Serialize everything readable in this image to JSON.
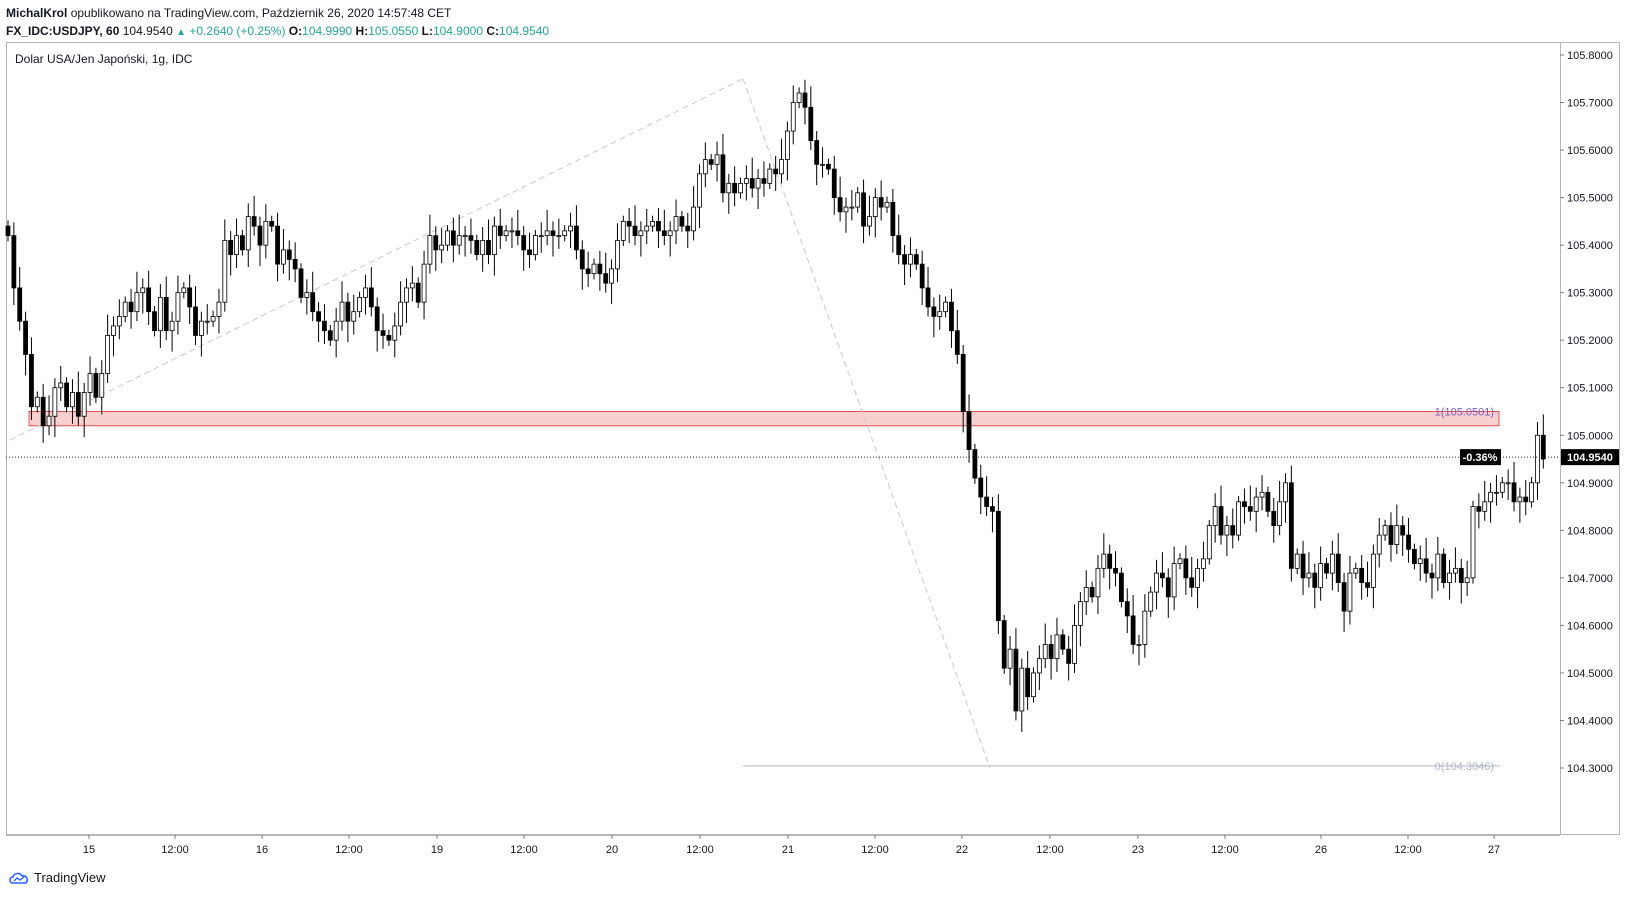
{
  "header": {
    "author": "MichalKrol",
    "published": "opublikowano na TradingView.com, Październik 26, 2020 14:57:48 CET",
    "symbol": "FX_IDC:USDJPY, 60",
    "last": "104.9540",
    "change": "+0.2640 (+0.25%)",
    "o_label": "O:",
    "o_value": "104.9990",
    "h_label": "H:",
    "h_value": "105.0550",
    "l_label": "L:",
    "l_value": "104.9000",
    "c_label": "C:",
    "c_value": "104.9540"
  },
  "chart_title": "Dolar USA/Jen Japoński, 1g, IDC",
  "footer": {
    "brand": "TradingView",
    "logo_icon": "tradingview-cloud-icon"
  },
  "colors": {
    "up_fill": "#ffffff",
    "down_fill": "#000000",
    "zone_fill": "#f8d0d0",
    "zone_stroke": "#e05050",
    "fib_text": "#7b5cc4"
  },
  "chart_data": {
    "type": "candlestick",
    "title": "Dolar USA/Jen Japoński, 1g, IDC",
    "ylim": [
      104.25,
      105.85
    ],
    "y_ticks": [
      "105.8000",
      "105.7000",
      "105.6000",
      "105.5000",
      "105.4000",
      "105.3000",
      "105.2000",
      "105.1000",
      "105.0000",
      "104.9000",
      "104.8000",
      "104.7000",
      "104.6000",
      "104.5000",
      "104.4000",
      "104.3000"
    ],
    "x_ticks": [
      "15",
      "12:00",
      "16",
      "12:00",
      "19",
      "12:00",
      "20",
      "12:00",
      "21",
      "12:00",
      "22",
      "12:00",
      "23",
      "12:00",
      "26",
      "12:00",
      "27"
    ],
    "last_price_label": "104.9540",
    "pct_change_label": "-0.36%",
    "last_price": 104.954,
    "resistance_zone": {
      "low": 105.02,
      "high": 105.05
    },
    "fib_levels": [
      {
        "label": "1(105.0501)",
        "value": 105.0501
      },
      {
        "label": "0(104.3046)",
        "value": 104.3046
      }
    ],
    "trend_lines": [
      {
        "from": [
          104.99,
          "15 start"
        ],
        "to": [
          105.75,
          "20 14:00"
        ]
      },
      {
        "from": [
          105.75,
          "20 14:00"
        ],
        "to": [
          104.3,
          "22 06:00"
        ]
      }
    ],
    "grid": false,
    "series": [
      {
        "close": [
          105.42,
          105.31,
          105.24,
          105.17,
          105.06,
          105.08,
          105.02,
          105.04,
          105.1,
          105.11,
          105.06,
          105.09,
          105.04,
          105.09,
          105.13,
          105.08,
          105.13,
          105.21,
          105.23,
          105.25,
          105.28,
          105.26,
          105.3,
          105.31,
          105.26,
          105.22,
          105.29,
          105.22,
          105.24,
          105.3,
          105.31,
          105.27,
          105.21,
          105.24,
          105.24,
          105.25,
          105.28,
          105.41,
          105.38,
          105.42,
          105.39,
          105.46,
          105.44,
          105.4,
          105.45,
          105.44,
          105.36,
          105.39,
          105.37,
          105.35,
          105.29,
          105.3,
          105.26,
          105.24,
          105.22,
          105.2,
          105.24,
          105.28,
          105.24,
          105.26,
          105.29,
          105.31,
          105.27,
          105.22,
          105.21,
          105.2,
          105.23,
          105.28,
          105.31,
          105.32,
          105.28,
          105.36,
          105.42,
          105.39,
          105.4,
          105.43,
          105.4,
          105.42,
          105.42,
          105.41,
          105.38,
          105.41,
          105.38,
          105.44,
          105.42,
          105.43,
          105.43,
          105.42,
          105.39,
          105.38,
          105.42,
          105.42,
          105.43,
          105.42,
          105.42,
          105.43,
          105.44,
          105.39,
          105.35,
          105.34,
          105.36,
          105.34,
          105.32,
          105.35,
          105.41,
          105.45,
          105.44,
          105.42,
          105.43,
          105.44,
          105.45,
          105.43,
          105.42,
          105.43,
          105.46,
          105.44,
          105.43,
          105.48,
          105.55,
          105.58,
          105.57,
          105.59,
          105.51,
          105.53,
          105.51,
          105.53,
          105.54,
          105.52,
          105.54,
          105.53,
          105.56,
          105.55,
          105.58,
          105.64,
          105.7,
          105.72,
          105.69,
          105.62,
          105.57,
          105.57,
          105.56,
          105.5,
          105.47,
          105.48,
          105.48,
          105.51,
          105.44,
          105.46,
          105.5,
          105.48,
          105.49,
          105.42,
          105.38,
          105.36,
          105.38,
          105.36,
          105.31,
          105.27,
          105.25,
          105.26,
          105.28,
          105.22,
          105.17,
          105.05,
          104.97,
          104.91,
          104.87,
          104.85,
          104.84,
          104.61,
          104.51,
          104.55,
          104.42,
          104.51,
          104.45,
          104.5,
          104.53,
          104.56,
          104.53,
          104.58,
          104.55,
          104.52,
          104.6,
          104.65,
          104.68,
          104.66,
          104.72,
          104.75,
          104.72,
          104.71,
          104.65,
          104.62,
          104.56,
          104.56,
          104.63,
          104.67,
          104.71,
          104.7,
          104.66,
          104.73,
          104.74,
          104.7,
          104.68,
          104.72,
          104.74,
          104.81,
          104.85,
          104.79,
          104.81,
          104.79,
          104.86,
          104.85,
          104.84,
          104.87,
          104.88,
          104.84,
          104.81,
          104.86,
          104.9,
          104.72,
          104.75,
          104.7,
          104.71,
          104.68,
          104.73,
          104.71,
          104.75,
          104.69,
          104.63,
          104.71,
          104.72,
          104.69,
          104.68,
          104.75,
          104.79,
          104.81,
          104.77,
          104.81,
          104.79,
          104.76,
          104.73,
          104.74,
          104.71,
          104.7,
          104.75,
          104.69,
          104.71,
          104.72,
          104.69,
          104.7,
          104.85,
          104.84,
          104.86,
          104.88,
          104.88,
          104.9,
          104.9,
          104.86,
          104.87,
          104.86,
          104.9,
          105.0,
          104.95
        ]
      }
    ]
  }
}
